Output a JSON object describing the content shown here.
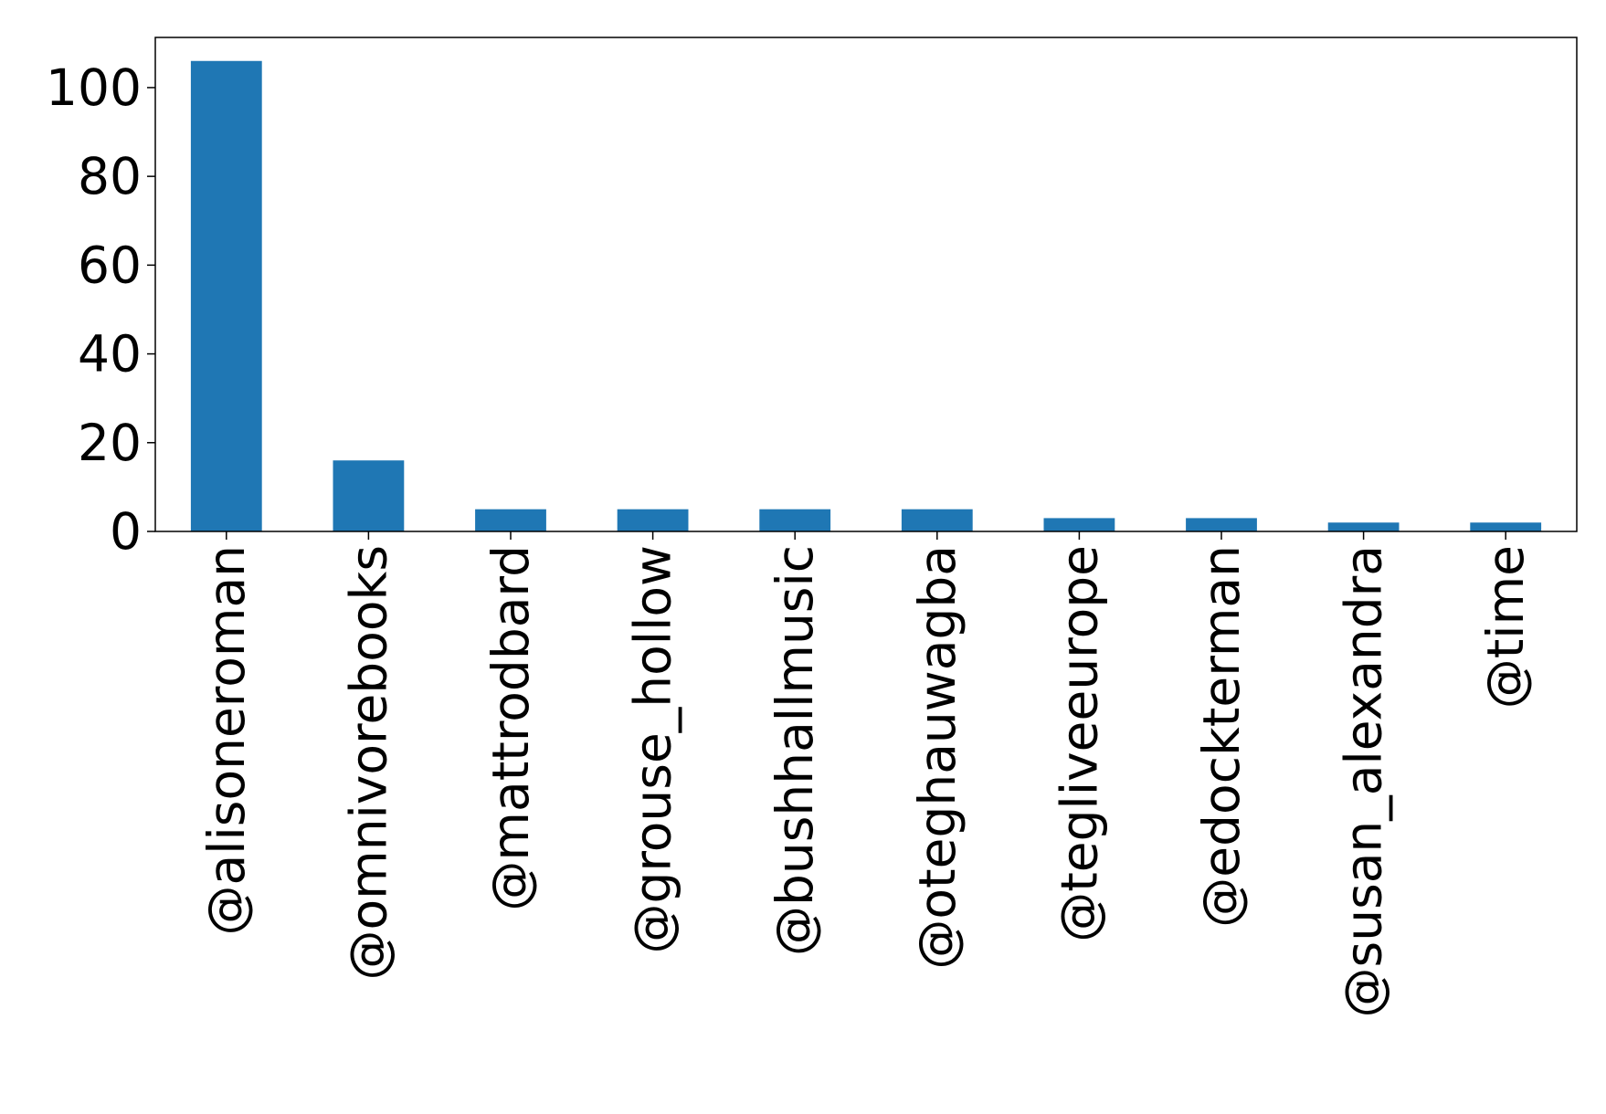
{
  "chart_data": {
    "type": "bar",
    "title": "",
    "xlabel": "",
    "ylabel": "",
    "categories": [
      "@alisoneroman",
      "@omnivorebooks",
      "@mattrodbard",
      "@grouse_hollow",
      "@bushhallmusic",
      "@oteghauwagba",
      "@tegliveeurope",
      "@edockterman",
      "@susan_alexandra",
      "@time"
    ],
    "values": [
      106,
      16,
      5,
      5,
      5,
      5,
      3,
      3,
      2,
      2
    ],
    "ylim": [
      0,
      111.3
    ],
    "yticks": [
      0,
      20,
      40,
      60,
      80,
      100
    ],
    "bar_color": "#1f77b4",
    "grid": false,
    "legend": "none"
  }
}
